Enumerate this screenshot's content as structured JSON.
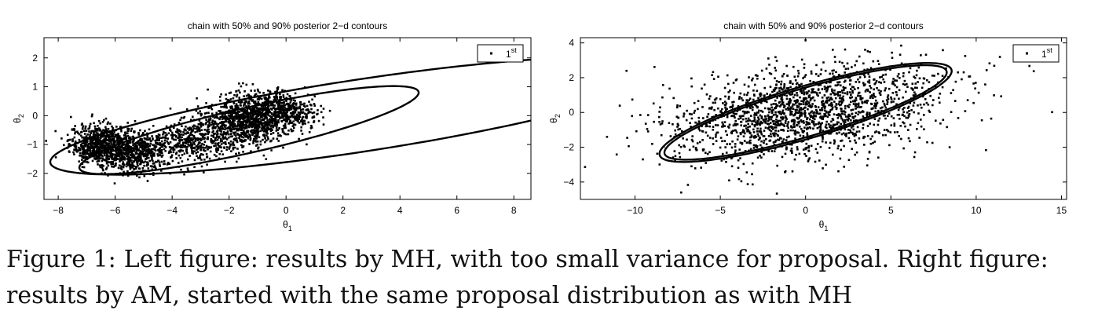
{
  "chart_data": [
    {
      "type": "scatter",
      "title": "chain with 50% and 90% posterior 2−d contours",
      "xlabel": "θ",
      "xlabel_sub": "1",
      "ylabel": "θ",
      "ylabel_sub": "2",
      "xlim": [
        -8.5,
        8.6
      ],
      "ylim": [
        -2.9,
        2.7
      ],
      "xticks": [
        -8,
        -6,
        -4,
        -2,
        0,
        2,
        4,
        6,
        8
      ],
      "yticks": [
        -2,
        -1,
        0,
        1,
        2
      ],
      "xtick_labels": [
        "−8",
        "−6",
        "−4",
        "−2",
        "0",
        "2",
        "4",
        "6",
        "8"
      ],
      "ytick_labels": [
        "−2",
        "−1",
        "0",
        "1",
        "2"
      ],
      "legend": {
        "label": "1",
        "label_sup": "st",
        "placement": "top-right"
      },
      "contours": [
        {
          "level": "90%",
          "center": [
            2.6,
            0.0
          ],
          "rx": 11.0,
          "ry": 1.25,
          "angle_deg": 8.5
        },
        {
          "level": "50%",
          "center": [
            -1.3,
            -0.5
          ],
          "rx": 6.1,
          "ry": 0.78,
          "angle_deg": 12.5
        }
      ],
      "point_clusters": [
        {
          "center": [
            -6.5,
            -1.0
          ],
          "spread": [
            0.55,
            0.35
          ],
          "n": 700
        },
        {
          "center": [
            -5.3,
            -1.3
          ],
          "spread": [
            0.55,
            0.35
          ],
          "n": 550
        },
        {
          "center": [
            -3.3,
            -0.9
          ],
          "spread": [
            0.7,
            0.35
          ],
          "n": 450
        },
        {
          "center": [
            -1.6,
            -0.2
          ],
          "spread": [
            0.65,
            0.45
          ],
          "n": 800
        },
        {
          "center": [
            -0.6,
            0.1
          ],
          "spread": [
            0.55,
            0.35
          ],
          "n": 450
        },
        {
          "center": [
            0.3,
            0.1
          ],
          "spread": [
            0.45,
            0.3
          ],
          "n": 200
        }
      ]
    },
    {
      "type": "scatter",
      "title": "chain with 50% and 90% posterior 2−d contours",
      "xlabel": "θ",
      "xlabel_sub": "1",
      "ylabel": "θ",
      "ylabel_sub": "2",
      "xlim": [
        -13.2,
        15.3
      ],
      "ylim": [
        -5,
        4.3
      ],
      "xticks": [
        -10,
        -5,
        0,
        5,
        10,
        15
      ],
      "yticks": [
        -4,
        -2,
        0,
        2,
        4
      ],
      "xtick_labels": [
        "−10",
        "−5",
        "0",
        "5",
        "10",
        "15"
      ],
      "ytick_labels": [
        "−4",
        "−2",
        "0",
        "2",
        "4"
      ],
      "legend": {
        "label": "1",
        "label_sup": "st",
        "placement": "top-right"
      },
      "contours": [
        {
          "level": "90%",
          "center": [
            0.0,
            0.0
          ],
          "rx": 8.9,
          "ry": 1.5,
          "angle_deg": 16
        },
        {
          "level": "90%-inner",
          "center": [
            0.0,
            0.0
          ],
          "rx": 8.6,
          "ry": 1.38,
          "angle_deg": 16
        }
      ],
      "point_clusters": [
        {
          "center": [
            0.0,
            0.0
          ],
          "spread": [
            4.0,
            1.35
          ],
          "n": 1800,
          "correlation": 0.29
        }
      ]
    }
  ],
  "caption": {
    "label": "Figure 1:",
    "text": "Left figure:  results by MH, with too small variance for proposal. Right figure: results by AM, started with the same proposal distribution as with MH"
  }
}
